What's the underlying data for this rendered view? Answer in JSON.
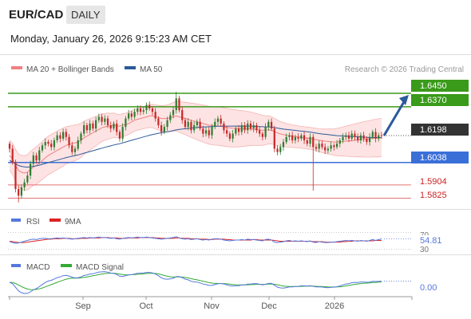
{
  "header": {
    "symbol": "EUR/CAD",
    "timeframe": "DAILY",
    "datetime": "Monday, January 26, 2026 9:15:23 AM CET"
  },
  "legend": {
    "ma20_label": "MA 20 + Bollinger Bands",
    "ma50_label": "MA 50",
    "credit": "Research © 2026 Trading Central",
    "ma20_color": "#f08080",
    "ma50_color": "#2c5a9a"
  },
  "colors": {
    "up_candle": "#2e7d32",
    "down_candle": "#c62828",
    "resistance": "#3a9a1a",
    "support": "#3a6fd8",
    "minor_support": "#e57373",
    "band_fill": "#fde3e3",
    "arrow": "#2c5a9a"
  },
  "chart_data": [
    {
      "type": "candlestick",
      "ylim": [
        1.578,
        1.655
      ],
      "x_ticks": [
        "Sep",
        "Oct",
        "Nov",
        "Dec",
        "2026"
      ],
      "price_labels": {
        "resistance_2": "1.6450",
        "resistance_1": "1.6370",
        "current": "1.6198",
        "support_1": "1.6038",
        "support_2": "1.5904",
        "support_3": "1.5825"
      },
      "levels": {
        "resistance_2": 1.645,
        "resistance_1": 1.637,
        "current": 1.6198,
        "support_1": 1.6038,
        "support_2": 1.5904,
        "support_3": 1.5825
      },
      "closes": [
        1.612,
        1.604,
        1.588,
        1.584,
        1.589,
        1.592,
        1.596,
        1.603,
        1.608,
        1.605,
        1.611,
        1.614,
        1.616,
        1.615,
        1.613,
        1.617,
        1.62,
        1.618,
        1.622,
        1.619,
        1.614,
        1.61,
        1.612,
        1.617,
        1.621,
        1.626,
        1.623,
        1.627,
        1.624,
        1.629,
        1.631,
        1.628,
        1.63,
        1.626,
        1.624,
        1.627,
        1.622,
        1.618,
        1.625,
        1.63,
        1.633,
        1.631,
        1.634,
        1.636,
        1.634,
        1.635,
        1.638,
        1.636,
        1.634,
        1.63,
        1.626,
        1.622,
        1.625,
        1.629,
        1.632,
        1.635,
        1.642,
        1.635,
        1.629,
        1.625,
        1.628,
        1.623,
        1.626,
        1.628,
        1.624,
        1.621,
        1.623,
        1.62,
        1.625,
        1.628,
        1.63,
        1.627,
        1.623,
        1.621,
        1.618,
        1.621,
        1.624,
        1.622,
        1.626,
        1.623,
        1.627,
        1.624,
        1.626,
        1.623,
        1.621,
        1.619,
        1.625,
        1.628,
        1.624,
        1.612,
        1.61,
        1.613,
        1.616,
        1.619,
        1.62,
        1.617,
        1.619,
        1.618,
        1.62,
        1.617,
        1.615,
        1.619,
        1.613,
        1.612,
        1.615,
        1.613,
        1.611,
        1.612,
        1.614,
        1.613,
        1.615,
        1.617,
        1.619,
        1.62,
        1.618,
        1.621,
        1.619,
        1.617,
        1.62,
        1.618,
        1.616,
        1.619,
        1.622,
        1.618,
        1.62,
        1.6198
      ],
      "ma20": [
        1.608,
        1.606,
        1.602,
        1.599,
        1.598,
        1.5975,
        1.598,
        1.5995,
        1.601,
        1.602,
        1.6035,
        1.605,
        1.6065,
        1.608,
        1.609,
        1.61,
        1.611,
        1.612,
        1.613,
        1.614,
        1.6145,
        1.615,
        1.6155,
        1.616,
        1.617,
        1.6185,
        1.6195,
        1.6205,
        1.6215,
        1.6225,
        1.6235,
        1.6245,
        1.625,
        1.6255,
        1.6255,
        1.626,
        1.6255,
        1.6255,
        1.626,
        1.6265,
        1.627,
        1.628,
        1.629,
        1.6295,
        1.63,
        1.6305,
        1.631,
        1.6315,
        1.6315,
        1.631,
        1.6305,
        1.63,
        1.63,
        1.63,
        1.6305,
        1.631,
        1.6315,
        1.631,
        1.6305,
        1.63,
        1.6295,
        1.629,
        1.6285,
        1.628,
        1.6275,
        1.627,
        1.6265,
        1.626,
        1.6258,
        1.6256,
        1.6255,
        1.6253,
        1.625,
        1.6247,
        1.6244,
        1.6242,
        1.6241,
        1.624,
        1.624,
        1.624,
        1.624,
        1.6238,
        1.6236,
        1.6234,
        1.6232,
        1.623,
        1.623,
        1.6232,
        1.623,
        1.6222,
        1.6214,
        1.6208,
        1.6204,
        1.62,
        1.6198,
        1.6195,
        1.6193,
        1.619,
        1.6188,
        1.6186,
        1.6184,
        1.6182,
        1.6178,
        1.6174,
        1.617,
        1.6168,
        1.6165,
        1.6163,
        1.6162,
        1.616,
        1.616,
        1.6161,
        1.6163,
        1.6165,
        1.6166,
        1.6168,
        1.617,
        1.6172,
        1.6174,
        1.6176,
        1.6177,
        1.6179,
        1.6182,
        1.6183,
        1.6185,
        1.6186
      ],
      "ma50": [
        1.605,
        1.604,
        1.603,
        1.602,
        1.6015,
        1.6012,
        1.601,
        1.6012,
        1.6015,
        1.6018,
        1.6022,
        1.6027,
        1.6032,
        1.6037,
        1.6042,
        1.6047,
        1.6052,
        1.6057,
        1.6062,
        1.6067,
        1.6071,
        1.6075,
        1.6079,
        1.6083,
        1.6088,
        1.6093,
        1.6098,
        1.6103,
        1.6108,
        1.6113,
        1.6118,
        1.6123,
        1.6128,
        1.6133,
        1.6137,
        1.6142,
        1.6146,
        1.615,
        1.6155,
        1.616,
        1.6165,
        1.617,
        1.6175,
        1.618,
        1.6185,
        1.619,
        1.6195,
        1.62,
        1.6204,
        1.6208,
        1.6212,
        1.6215,
        1.6218,
        1.6221,
        1.6224,
        1.6228,
        1.6232,
        1.6235,
        1.6237,
        1.6239,
        1.6241,
        1.6243,
        1.6245,
        1.6247,
        1.6248,
        1.6249,
        1.625,
        1.6251,
        1.6252,
        1.6253,
        1.6254,
        1.6255,
        1.6255,
        1.6255,
        1.6255,
        1.6255,
        1.6255,
        1.6255,
        1.6255,
        1.6255,
        1.6255,
        1.6255,
        1.6254,
        1.6253,
        1.6252,
        1.6251,
        1.625,
        1.625,
        1.6249,
        1.6246,
        1.6243,
        1.624,
        1.6237,
        1.6235,
        1.6233,
        1.6231,
        1.6229,
        1.6227,
        1.6225,
        1.6223,
        1.6221,
        1.6219,
        1.6216,
        1.6213,
        1.621,
        1.6208,
        1.6206,
        1.6204,
        1.6202,
        1.62,
        1.6198,
        1.6197,
        1.6196,
        1.6195,
        1.6194,
        1.6193,
        1.6192,
        1.6191,
        1.619,
        1.6189,
        1.6188,
        1.6187,
        1.6187,
        1.6186,
        1.6186,
        1.6186
      ]
    },
    {
      "type": "line",
      "title": "RSI",
      "series": [
        {
          "name": "RSI",
          "color": "#5577dd"
        },
        {
          "name": "9MA",
          "color": "#dd2222"
        }
      ],
      "ylim": [
        30,
        70
      ],
      "y_ticks": [
        "70",
        "30"
      ],
      "current_label": "54.81",
      "rsi": [
        48,
        46,
        44,
        45,
        47,
        49,
        51,
        53,
        54,
        53,
        55,
        56,
        56,
        55,
        55,
        56,
        57,
        56,
        57,
        56,
        55,
        54,
        55,
        56,
        57,
        58,
        57,
        58,
        57,
        58,
        59,
        58,
        58,
        57,
        56,
        57,
        55,
        54,
        56,
        57,
        58,
        57,
        58,
        59,
        58,
        58,
        59,
        58,
        57,
        56,
        55,
        54,
        55,
        56,
        57,
        58,
        60,
        57,
        55,
        54,
        55,
        53,
        54,
        55,
        53,
        52,
        53,
        52,
        54,
        55,
        55,
        54,
        52,
        51,
        50,
        51,
        52,
        52,
        53,
        52,
        54,
        53,
        53,
        52,
        51,
        50,
        53,
        54,
        52,
        47,
        46,
        47,
        48,
        50,
        51,
        49,
        50,
        49,
        50,
        49,
        48,
        50,
        47,
        46,
        48,
        47,
        46,
        46,
        47,
        47,
        48,
        49,
        50,
        51,
        50,
        51,
        50,
        49,
        51,
        50,
        49,
        51,
        53,
        51,
        53,
        54.81
      ],
      "rsi_ma": [
        49,
        48,
        47,
        46,
        46,
        46,
        47,
        48,
        49,
        50,
        51,
        52,
        53,
        54,
        54,
        55,
        55,
        55,
        56,
        56,
        56,
        55,
        55,
        55,
        56,
        56,
        56,
        57,
        57,
        57,
        57,
        58,
        58,
        58,
        57,
        57,
        57,
        56,
        56,
        56,
        57,
        57,
        57,
        57,
        58,
        58,
        58,
        58,
        58,
        57,
        57,
        56,
        56,
        56,
        56,
        56,
        57,
        57,
        56,
        56,
        56,
        55,
        55,
        55,
        54,
        54,
        54,
        53,
        53,
        54,
        54,
        54,
        54,
        53,
        53,
        52,
        52,
        52,
        52,
        52,
        52,
        52,
        53,
        53,
        52,
        52,
        52,
        52,
        52,
        51,
        50,
        49,
        49,
        49,
        49,
        49,
        49,
        49,
        49,
        49,
        49,
        49,
        48,
        48,
        48,
        48,
        47,
        47,
        47,
        47,
        47,
        47,
        48,
        48,
        49,
        49,
        50,
        50,
        50,
        50,
        50,
        50,
        50,
        51,
        51,
        51
      ]
    },
    {
      "type": "line",
      "title": "MACD",
      "series": [
        {
          "name": "MACD",
          "color": "#5577dd"
        },
        {
          "name": "MACD Signal",
          "color": "#33aa33"
        }
      ],
      "current_label": "0.00"
    }
  ]
}
